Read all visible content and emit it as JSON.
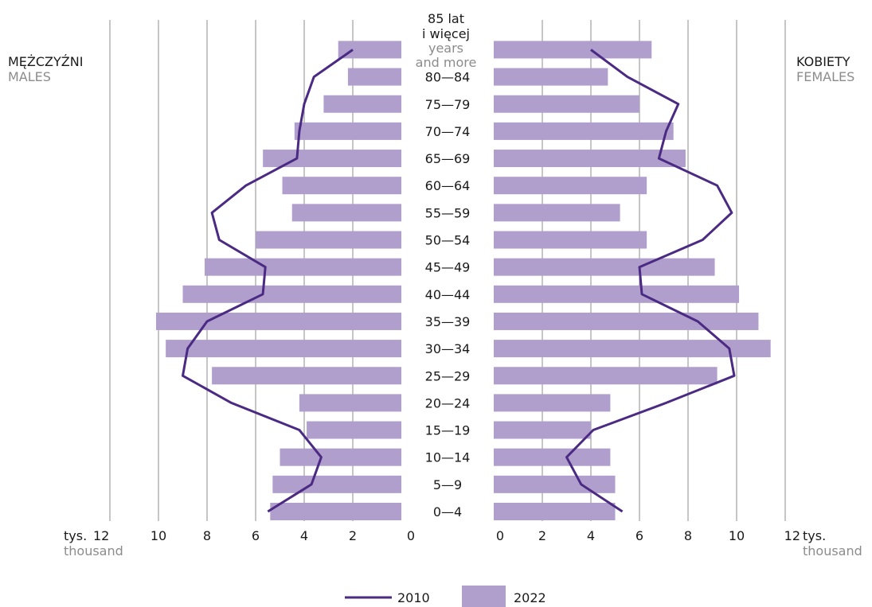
{
  "chart_data": {
    "type": "bar",
    "categories": [
      "0—4",
      "5—9",
      "10—14",
      "15—19",
      "20—24",
      "25—29",
      "30—34",
      "35—39",
      "40—44",
      "45—49",
      "50—54",
      "55—59",
      "60—64",
      "65—69",
      "70—74",
      "75—79",
      "80—84",
      "85 lat i więcej"
    ],
    "top_category_label": {
      "line1": "85 lat",
      "line2": "i więcej",
      "line3": "years",
      "line4": "and more"
    },
    "males_label": {
      "pl": "MĘŻCZYŹNI",
      "en": "MALES"
    },
    "females_label": {
      "pl": "KOBIETY",
      "en": "FEMALES"
    },
    "x_unit": {
      "left_pl": "tys.",
      "left_en": "thousand",
      "right_pl": "tys.",
      "right_en": "thousand"
    },
    "xlim": [
      0,
      12
    ],
    "x_ticks": [
      0,
      2,
      4,
      6,
      8,
      10,
      12
    ],
    "grid": true,
    "legend": {
      "line_label": "2010",
      "bar_label": "2022",
      "placement": "bottom-center"
    },
    "colors": {
      "bars_2022": "#b09fcd",
      "line_2010": "#4b2a83",
      "grid": "#8c8c8c"
    },
    "series": [
      {
        "name": "2022",
        "kind": "bar",
        "males": [
          5.4,
          5.3,
          5.0,
          3.9,
          4.2,
          7.8,
          9.7,
          10.1,
          9.0,
          8.1,
          6.0,
          4.5,
          4.9,
          5.7,
          4.4,
          3.2,
          2.2,
          2.6
        ],
        "females": [
          5.0,
          5.0,
          4.8,
          4.0,
          4.8,
          9.2,
          11.4,
          10.9,
          10.1,
          9.1,
          6.3,
          5.2,
          6.3,
          7.9,
          7.4,
          6.0,
          4.7,
          6.5
        ]
      },
      {
        "name": "2010",
        "kind": "line",
        "males": [
          5.5,
          3.7,
          3.3,
          4.2,
          7.0,
          9.0,
          8.8,
          8.0,
          5.7,
          5.6,
          7.5,
          7.8,
          6.4,
          4.3,
          4.2,
          4.0,
          3.6,
          2.0
        ],
        "females": [
          5.3,
          3.6,
          3.0,
          4.1,
          7.1,
          9.9,
          9.7,
          8.4,
          6.1,
          6.0,
          8.6,
          9.8,
          9.2,
          6.8,
          7.1,
          7.6,
          5.5,
          4.0
        ]
      }
    ]
  }
}
